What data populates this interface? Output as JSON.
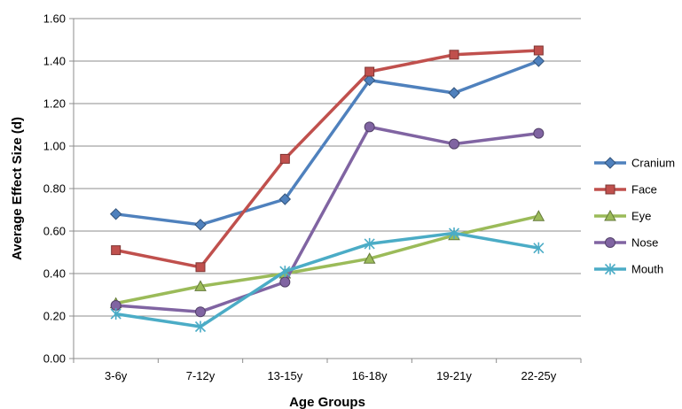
{
  "chart_data": {
    "type": "line",
    "title": "",
    "xlabel": "Age Groups",
    "ylabel": "Average Effect Size (d)",
    "categories": [
      "3-6y",
      "7-12y",
      "13-15y",
      "16-18y",
      "19-21y",
      "22-25y"
    ],
    "ylim": [
      0,
      1.6
    ],
    "yticks": [
      "0.00",
      "0.20",
      "0.40",
      "0.60",
      "0.80",
      "1.00",
      "1.20",
      "1.40",
      "1.60"
    ],
    "grid": true,
    "legend_position": "right",
    "series": [
      {
        "name": "Cranium",
        "values": [
          0.68,
          0.63,
          0.75,
          1.31,
          1.25,
          1.4
        ],
        "color": "#4F81BD",
        "marker": "diamond"
      },
      {
        "name": "Face",
        "values": [
          0.51,
          0.43,
          0.94,
          1.35,
          1.43,
          1.45
        ],
        "color": "#C0504D",
        "marker": "square"
      },
      {
        "name": "Eye",
        "values": [
          0.26,
          0.34,
          0.4,
          0.47,
          0.58,
          0.67
        ],
        "color": "#9BBB59",
        "marker": "triangle"
      },
      {
        "name": "Nose",
        "values": [
          0.25,
          0.22,
          0.36,
          1.09,
          1.01,
          1.06
        ],
        "color": "#8064A2",
        "marker": "circle"
      },
      {
        "name": "Mouth",
        "values": [
          0.21,
          0.15,
          0.41,
          0.54,
          0.59,
          0.52
        ],
        "color": "#4BACC6",
        "marker": "asterisk"
      }
    ]
  }
}
